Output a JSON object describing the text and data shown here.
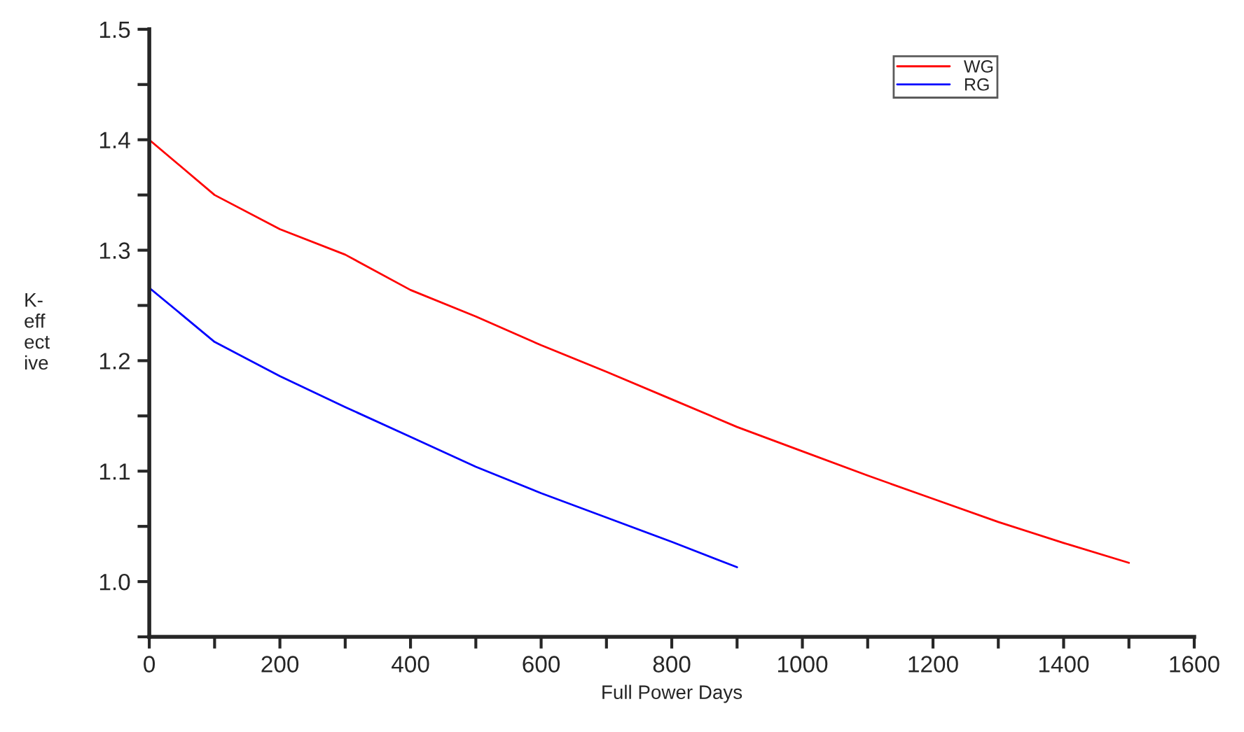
{
  "chart_data": {
    "type": "line",
    "xlabel": "Full Power Days",
    "ylabel": "K-\neff\nect\nive",
    "xlim": [
      0,
      1600
    ],
    "ylim": [
      0.95,
      1.5
    ],
    "xticks": [
      0,
      {
        "value": 100,
        "label": null
      },
      200,
      {
        "value": 300,
        "label": null
      },
      400,
      {
        "value": 500,
        "label": null
      },
      600,
      {
        "value": 700,
        "label": null
      },
      800,
      {
        "value": 900,
        "label": null
      },
      1000,
      {
        "value": 1100,
        "label": null
      },
      1200,
      {
        "value": 1300,
        "label": null
      },
      1400,
      {
        "value": 1500,
        "label": null
      },
      1600
    ],
    "yticks": [
      {
        "value": 0.95,
        "label": null
      },
      {
        "value": 1.0,
        "label": "1.0"
      },
      {
        "value": 1.05,
        "label": null
      },
      1.1,
      {
        "value": 1.15,
        "label": null
      },
      1.2,
      {
        "value": 1.25,
        "label": null
      },
      1.3,
      {
        "value": 1.35,
        "label": null
      },
      1.4,
      {
        "value": 1.45,
        "label": null
      },
      1.5
    ],
    "grid": false,
    "legend": "top right",
    "marker": "none",
    "line_style": "solid",
    "series": [
      {
        "name": "WG",
        "color": "#ff0000",
        "x": [
          0,
          100,
          200,
          300,
          400,
          500,
          600,
          700,
          800,
          900,
          1000,
          1100,
          1200,
          1300,
          1400,
          1500
        ],
        "values": [
          1.4,
          1.35,
          1.319,
          1.296,
          1.264,
          1.24,
          1.214,
          1.19,
          1.165,
          1.14,
          1.118,
          1.096,
          1.075,
          1.054,
          1.035,
          1.017
        ]
      },
      {
        "name": "RG",
        "color": "#0000ff",
        "x": [
          0,
          100,
          200,
          300,
          400,
          500,
          600,
          700,
          800,
          900
        ],
        "values": [
          1.266,
          1.217,
          1.186,
          1.158,
          1.131,
          1.104,
          1.08,
          1.058,
          1.036,
          1.013
        ]
      }
    ]
  }
}
